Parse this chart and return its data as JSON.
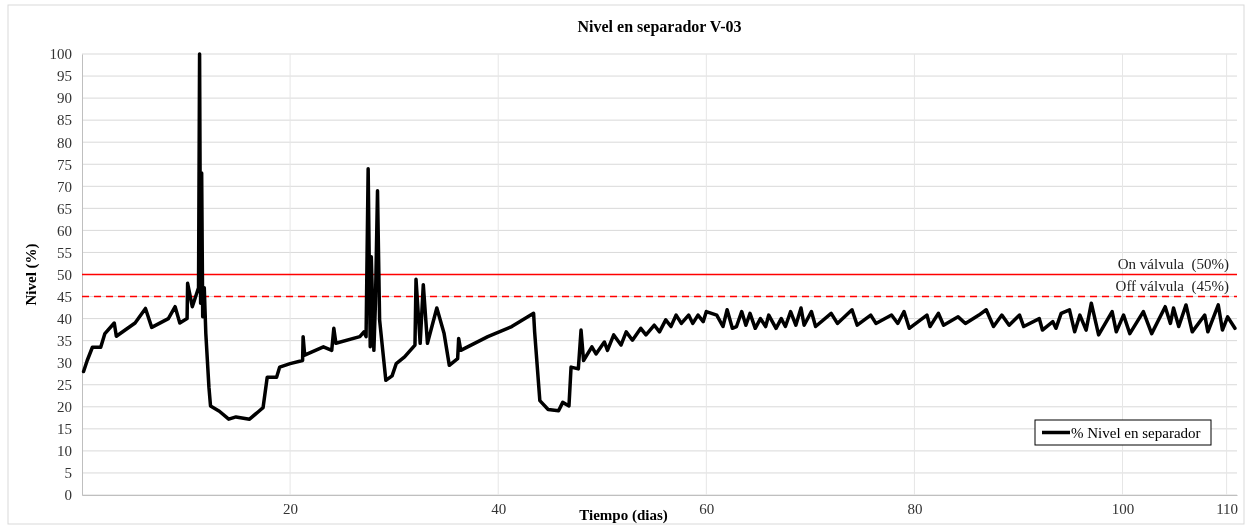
{
  "chart_data": {
    "type": "line",
    "title": "Nivel en separador V-03",
    "xlabel": "Tiempo (dias)",
    "ylabel": "Nivel (%)",
    "xlim": [
      0,
      111
    ],
    "xticks": [
      20,
      40,
      60,
      80,
      100,
      110
    ],
    "ylim": [
      0,
      100
    ],
    "yticks": [
      0,
      5,
      10,
      15,
      20,
      25,
      30,
      35,
      40,
      45,
      50,
      55,
      60,
      65,
      70,
      75,
      80,
      85,
      90,
      95,
      100
    ],
    "grid": true,
    "legend": "bottom right",
    "line_style": "solid",
    "marker": "none",
    "ref_lines": [
      {
        "axis": "y",
        "value": 50,
        "label": "On válvula  (50%)",
        "color": "#ff0000",
        "line_style": "solid"
      },
      {
        "axis": "y",
        "value": 45,
        "label": "Off válvula  (45%)",
        "color": "#ff0000",
        "line_style": "dashed"
      }
    ],
    "series": [
      {
        "name": "% Nivel en separador",
        "color": "#000000",
        "x": [
          0.15,
          0.5,
          1.0,
          1.8,
          2.2,
          3.1,
          3.3,
          5.1,
          6.1,
          6.7,
          8.3,
          8.95,
          9.4,
          10.1,
          10.15,
          10.6,
          11.2,
          11.3,
          11.4,
          11.5,
          11.6,
          11.75,
          11.9,
          12.2,
          12.35,
          13.2,
          14.1,
          14.8,
          16.1,
          17.0,
          17.4,
          17.8,
          18.7,
          19.0,
          20.0,
          21.2,
          21.25,
          21.4,
          23.2,
          24.0,
          24.2,
          24.4,
          26.7,
          27.1,
          27.3,
          27.5,
          27.7,
          27.8,
          28.05,
          28.2,
          28.4,
          28.6,
          29.2,
          29.8,
          30.2,
          31.0,
          32.0,
          32.1,
          32.5,
          32.8,
          33.2,
          34.1,
          34.8,
          35.3,
          36.1,
          36.2,
          36.4,
          39.0,
          41.3,
          43.4,
          43.5,
          44.0,
          44.8,
          45.8,
          46.2,
          46.8,
          47.0,
          47.7,
          47.96,
          48.2,
          49.0,
          49.4,
          50.2,
          50.5,
          51.1,
          51.8,
          52.3,
          52.9,
          53.7,
          54.2,
          55.0,
          55.5,
          56.1,
          56.6,
          57.1,
          57.6,
          58.3,
          58.7,
          59.2,
          59.7,
          60.0,
          61.0,
          61.6,
          62.0,
          62.5,
          62.9,
          63.4,
          63.8,
          64.2,
          64.7,
          65.2,
          65.7,
          66.0,
          66.7,
          67.2,
          67.6,
          68.1,
          68.6,
          69.1,
          69.4,
          70.1,
          70.5,
          72.0,
          72.6,
          74.0,
          74.5,
          75.8,
          76.3,
          77.8,
          78.4,
          79.0,
          79.5,
          81.2,
          81.5,
          82.3,
          82.8,
          84.2,
          84.9,
          86.2,
          86.9,
          87.6,
          88.4,
          89.1,
          90.1,
          90.5,
          92.0,
          92.3,
          93.3,
          93.6,
          94.1,
          94.9,
          95.4,
          95.9,
          96.5,
          97.0,
          97.7,
          99.0,
          99.4,
          100.1,
          100.7,
          102.0,
          102.8,
          104.1,
          104.6,
          104.9,
          105.4,
          106.1,
          106.7,
          107.9,
          108.2,
          109.2,
          109.6,
          110.1,
          110.8
        ],
        "values": [
          28,
          30.5,
          33.5,
          33.5,
          36.6,
          39,
          36,
          39,
          42.3,
          38,
          40,
          42.7,
          39,
          40,
          48,
          42.7,
          47,
          100,
          43.5,
          73,
          40.4,
          47,
          36.6,
          24.4,
          20.2,
          19,
          17.2,
          17.7,
          17.2,
          19,
          19.8,
          26.7,
          26.7,
          29,
          29.8,
          30.5,
          35.9,
          31.7,
          33.6,
          32.8,
          37.8,
          34.4,
          35.9,
          37,
          35.9,
          74,
          33.6,
          54,
          32.8,
          43.5,
          69,
          39.7,
          26,
          27,
          29.8,
          31.3,
          34,
          48.9,
          34.4,
          47.7,
          34.4,
          42.4,
          36.6,
          29.4,
          30.9,
          35.5,
          32.8,
          35.9,
          38.2,
          41.2,
          37,
          21.4,
          19.4,
          19.1,
          21,
          20.2,
          29,
          28.6,
          37.4,
          30.5,
          33.6,
          32,
          34.7,
          32.8,
          36.3,
          34,
          37,
          35.1,
          37.8,
          36.3,
          38.5,
          37,
          39.7,
          38.2,
          40.8,
          38.9,
          40.8,
          38.9,
          40.8,
          39.3,
          41.6,
          40.8,
          38.2,
          42,
          37.8,
          38.2,
          41.6,
          38.5,
          41.2,
          37.8,
          40,
          38.2,
          40.8,
          37.8,
          40,
          38.2,
          41.6,
          38.5,
          42.4,
          38.5,
          41.6,
          38.2,
          41.2,
          38.9,
          42,
          38.5,
          40.8,
          38.9,
          40.8,
          38.9,
          41.6,
          37.8,
          40.8,
          38.2,
          41.2,
          38.5,
          40.4,
          38.9,
          40.8,
          42,
          38.2,
          40.8,
          38.5,
          40.8,
          38.2,
          40,
          37.4,
          39.3,
          37.8,
          41.2,
          42,
          37,
          40.8,
          37.4,
          43.5,
          36.3,
          41.6,
          37,
          40.8,
          36.6,
          41.6,
          36.6,
          42.7,
          38.9,
          42.4,
          38.2,
          43.1,
          37,
          40.8,
          37,
          43.1,
          37.4,
          40.4,
          37.8
        ]
      }
    ]
  }
}
